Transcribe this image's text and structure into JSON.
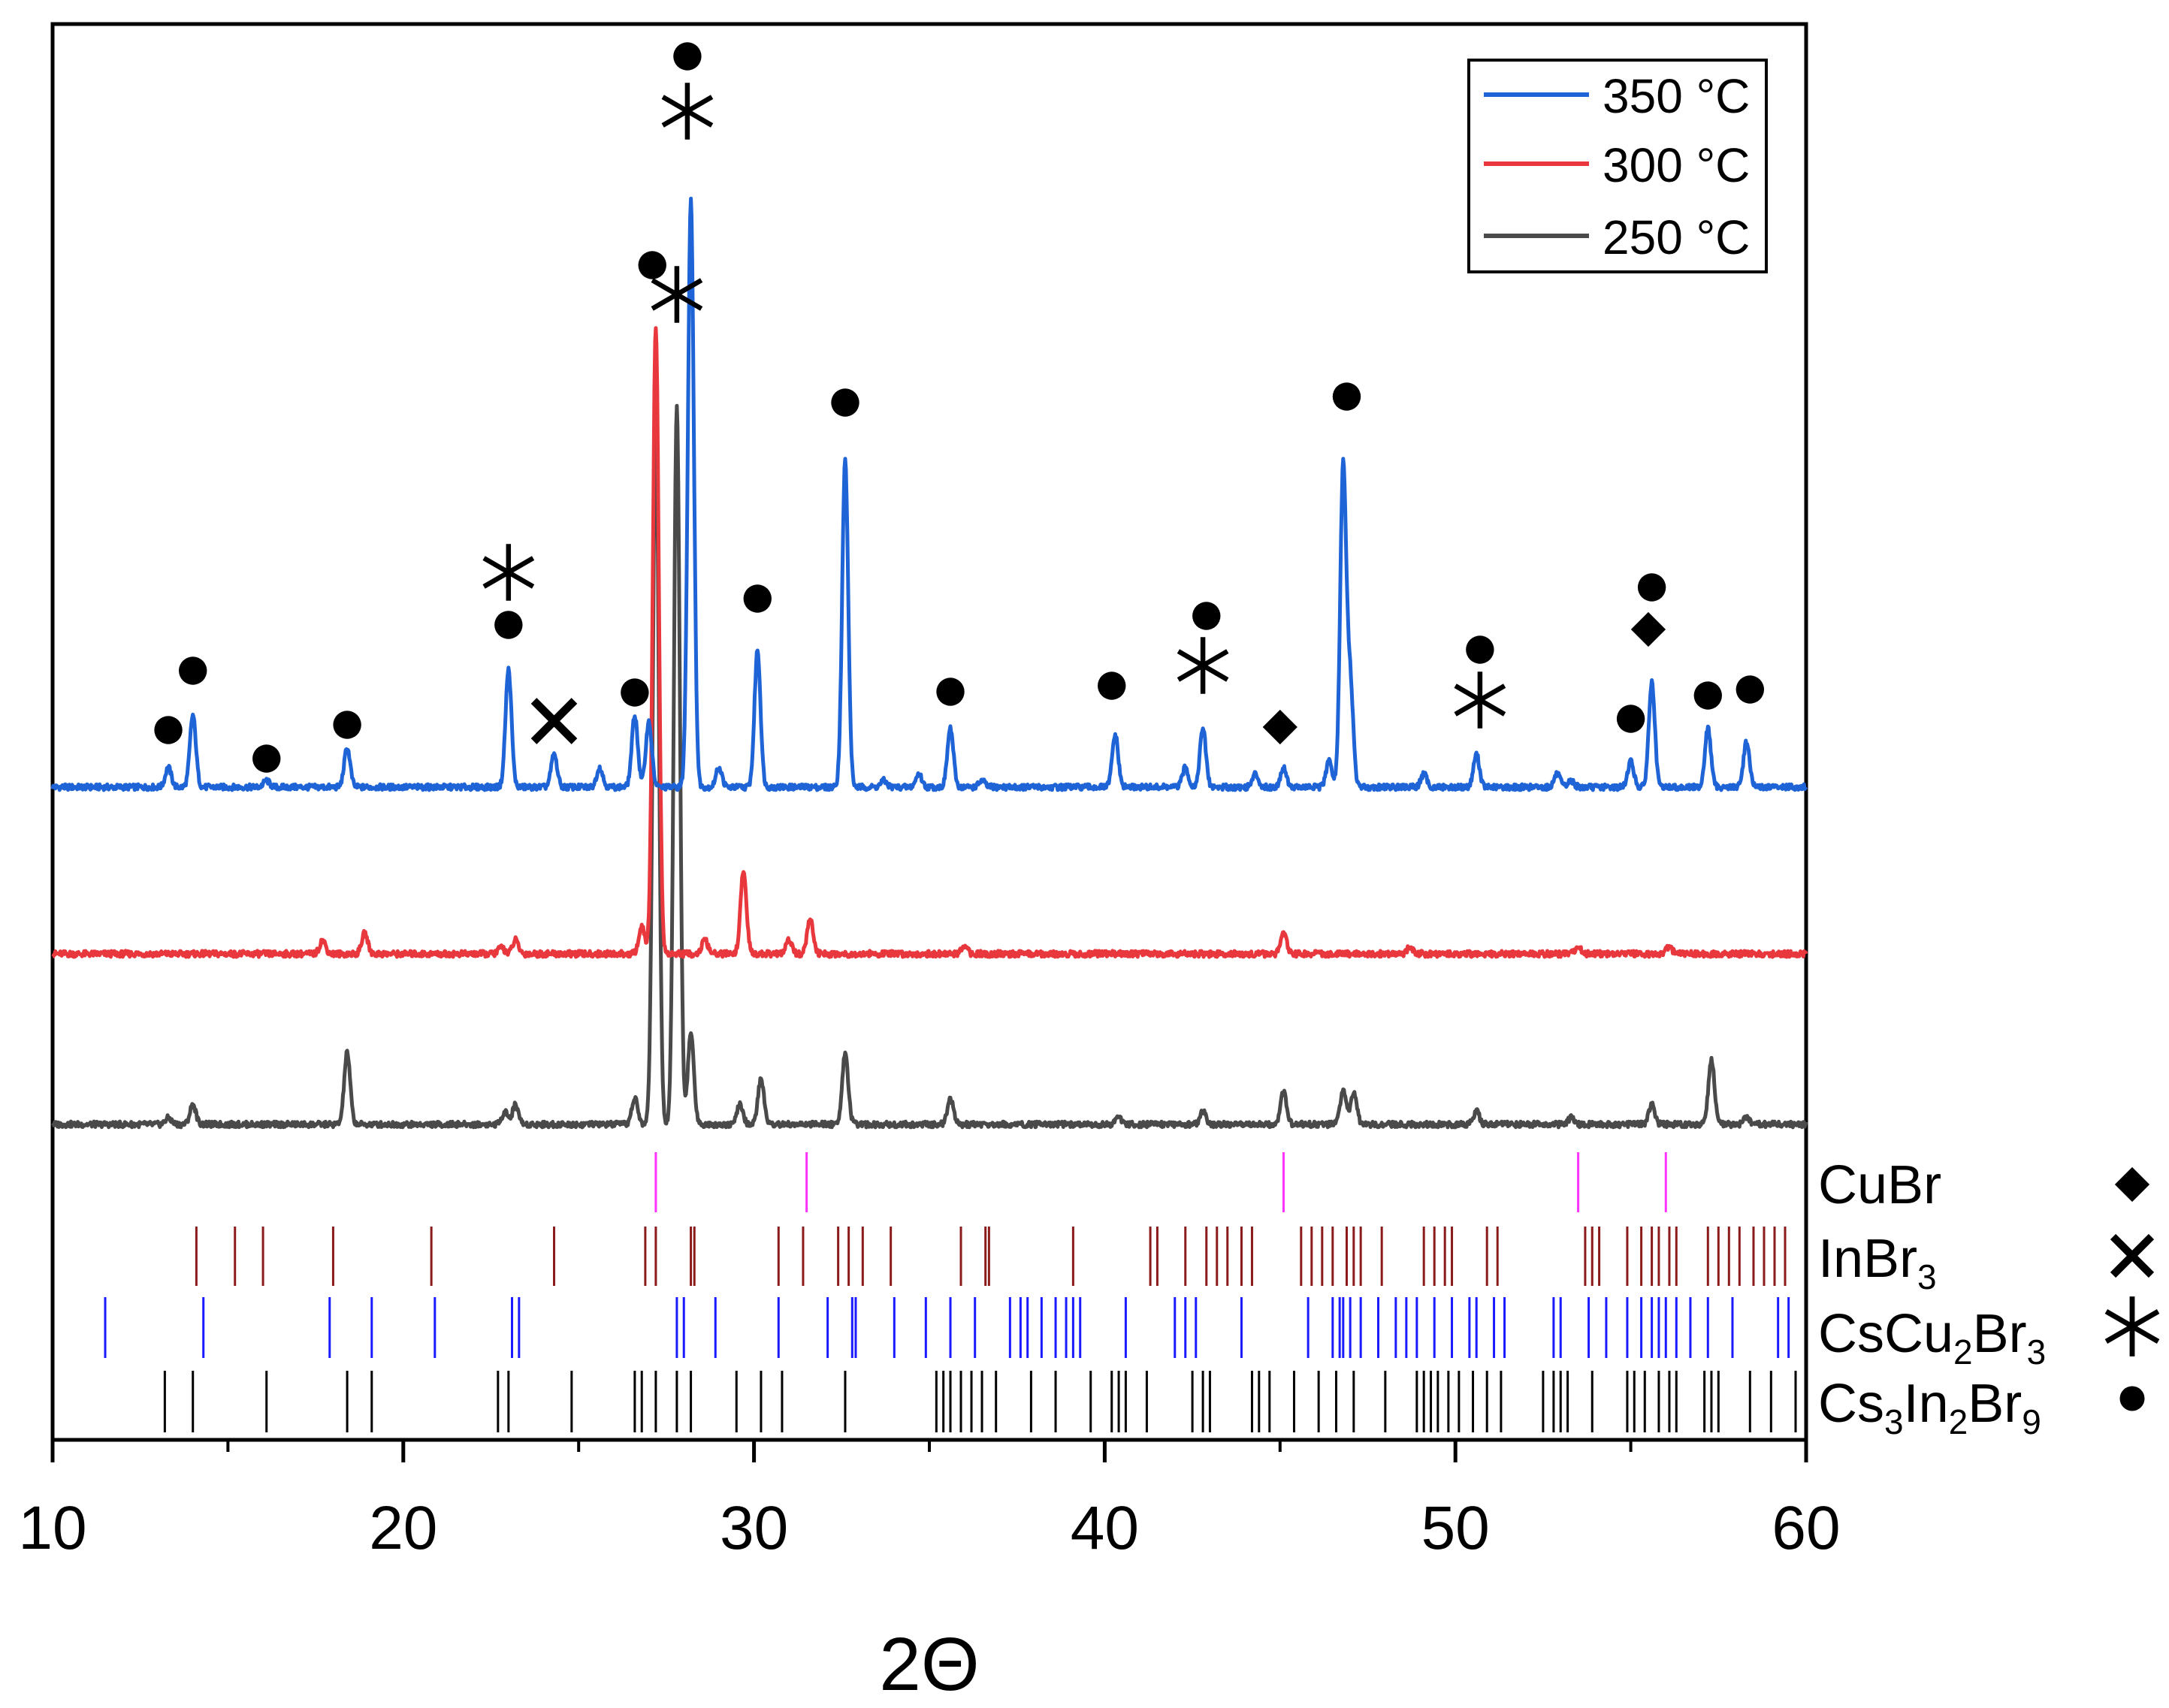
{
  "chart_data": {
    "type": "line",
    "title": "",
    "xlabel": "2Θ",
    "ylabel": "",
    "xlim": [
      10,
      60
    ],
    "xticks": [
      10,
      20,
      30,
      40,
      50,
      60
    ],
    "y_ticks_shown": false,
    "legend": {
      "position": "top-right",
      "entries": [
        {
          "label": "350 °C",
          "color": "#1f64d6"
        },
        {
          "label": "300 °C",
          "color": "#e8383d"
        },
        {
          "label": "250 °C",
          "color": "#4a4a4a"
        }
      ]
    },
    "series": [
      {
        "name": "350 °C",
        "color": "#1f64d6",
        "baseline": 0,
        "peaks": [
          [
            13.3,
            0.03
          ],
          [
            14.0,
            0.11
          ],
          [
            16.1,
            0.01
          ],
          [
            18.4,
            0.06
          ],
          [
            23.0,
            0.18
          ],
          [
            24.3,
            0.05
          ],
          [
            25.6,
            0.03
          ],
          [
            26.6,
            0.11
          ],
          [
            27.0,
            0.1
          ],
          [
            28.2,
            0.9
          ],
          [
            29.0,
            0.03
          ],
          [
            30.1,
            0.21
          ],
          [
            32.6,
            0.5
          ],
          [
            33.7,
            0.01
          ],
          [
            34.7,
            0.02
          ],
          [
            35.6,
            0.09
          ],
          [
            36.5,
            0.01
          ],
          [
            40.3,
            0.08
          ],
          [
            42.3,
            0.03
          ],
          [
            42.8,
            0.09
          ],
          [
            44.3,
            0.02
          ],
          [
            45.1,
            0.03
          ],
          [
            46.4,
            0.04
          ],
          [
            46.8,
            0.49
          ],
          [
            47.0,
            0.16
          ],
          [
            49.1,
            0.02
          ],
          [
            50.6,
            0.05
          ],
          [
            52.9,
            0.02
          ],
          [
            53.3,
            0.01
          ],
          [
            55.0,
            0.04
          ],
          [
            55.6,
            0.16
          ],
          [
            57.2,
            0.09
          ],
          [
            58.3,
            0.07
          ]
        ]
      },
      {
        "name": "300 °C",
        "color": "#e8383d",
        "baseline": 0,
        "peaks": [
          [
            17.7,
            0.02
          ],
          [
            18.9,
            0.03
          ],
          [
            22.8,
            0.01
          ],
          [
            23.2,
            0.02
          ],
          [
            26.8,
            0.04
          ],
          [
            27.2,
            0.92
          ],
          [
            28.6,
            0.02
          ],
          [
            29.7,
            0.12
          ],
          [
            31.0,
            0.02
          ],
          [
            31.6,
            0.05
          ],
          [
            36.0,
            0.01
          ],
          [
            45.1,
            0.03
          ],
          [
            48.7,
            0.01
          ],
          [
            53.5,
            0.01
          ],
          [
            56.1,
            0.01
          ]
        ]
      },
      {
        "name": "250 °C",
        "color": "#4a4a4a",
        "baseline": 0,
        "peaks": [
          [
            13.3,
            0.01
          ],
          [
            14.0,
            0.03
          ],
          [
            18.4,
            0.11
          ],
          [
            22.9,
            0.02
          ],
          [
            23.2,
            0.03
          ],
          [
            26.6,
            0.04
          ],
          [
            27.2,
            1.1
          ],
          [
            27.8,
            1.1
          ],
          [
            28.2,
            0.14
          ],
          [
            29.6,
            0.03
          ],
          [
            30.2,
            0.07
          ],
          [
            32.6,
            0.11
          ],
          [
            35.6,
            0.04
          ],
          [
            40.4,
            0.01
          ],
          [
            42.8,
            0.02
          ],
          [
            45.1,
            0.05
          ],
          [
            46.8,
            0.05
          ],
          [
            47.1,
            0.05
          ],
          [
            50.6,
            0.02
          ],
          [
            53.3,
            0.01
          ],
          [
            55.6,
            0.03
          ],
          [
            57.3,
            0.1
          ],
          [
            58.3,
            0.01
          ]
        ]
      }
    ],
    "annotations": [
      {
        "symbol": "circle",
        "x": 13.3
      },
      {
        "symbol": "circle",
        "x": 14.0
      },
      {
        "symbol": "circle",
        "x": 16.1
      },
      {
        "symbol": "circle",
        "x": 18.4
      },
      {
        "symbol": "circle",
        "x": 23.0
      },
      {
        "symbol": "asterisk",
        "x": 23.0
      },
      {
        "symbol": "cross",
        "x": 24.3
      },
      {
        "symbol": "circle",
        "x": 26.6
      },
      {
        "symbol": "circle",
        "x": 27.1
      },
      {
        "symbol": "asterisk",
        "x": 27.8
      },
      {
        "symbol": "circle",
        "x": 28.1
      },
      {
        "symbol": "asterisk",
        "x": 28.1
      },
      {
        "symbol": "circle",
        "x": 30.1
      },
      {
        "symbol": "circle",
        "x": 32.6
      },
      {
        "symbol": "circle",
        "x": 35.6
      },
      {
        "symbol": "circle",
        "x": 40.2
      },
      {
        "symbol": "asterisk",
        "x": 42.8
      },
      {
        "symbol": "circle",
        "x": 42.9
      },
      {
        "symbol": "diamond",
        "x": 45.0
      },
      {
        "symbol": "circle",
        "x": 46.9
      },
      {
        "symbol": "asterisk",
        "x": 50.7
      },
      {
        "symbol": "circle",
        "x": 50.7
      },
      {
        "symbol": "circle",
        "x": 55.0
      },
      {
        "symbol": "diamond",
        "x": 55.5
      },
      {
        "symbol": "circle",
        "x": 55.6
      },
      {
        "symbol": "circle",
        "x": 57.2
      },
      {
        "symbol": "circle",
        "x": 58.4
      }
    ],
    "reference_phases": [
      {
        "name": "CuBr",
        "base": "CuBr",
        "sub": [],
        "symbol": "diamond",
        "color": "#ff33ff",
        "positions": [
          27.2,
          31.5,
          45.1,
          53.5,
          56.0
        ]
      },
      {
        "name": "InBr3",
        "base": "InBr",
        "sub": [
          "3"
        ],
        "symbol": "cross",
        "color": "#8b1a1a",
        "positions": [
          14.1,
          15.2,
          16.0,
          18.0,
          20.8,
          24.3,
          26.9,
          27.2,
          28.2,
          28.3,
          30.7,
          31.4,
          32.4,
          32.7,
          33.1,
          33.9,
          35.9,
          36.6,
          36.7,
          39.1,
          41.3,
          41.5,
          42.3,
          42.9,
          43.2,
          43.5,
          43.9,
          44.2,
          45.6,
          45.9,
          46.2,
          46.5,
          46.9,
          47.1,
          47.3,
          47.9,
          49.1,
          49.4,
          49.7,
          49.9,
          50.9,
          51.2,
          53.7,
          53.9,
          54.1,
          54.9,
          55.3,
          55.6,
          55.8,
          56.1,
          56.3,
          57.2,
          57.5,
          57.8,
          58.1,
          58.5,
          58.8,
          59.1,
          59.4
        ]
      },
      {
        "name": "CsCu2Br3",
        "base": "CsCu",
        "sub": [
          "2",
          "Br",
          "3"
        ],
        "symbol": "asterisk",
        "color": "#1a1aff",
        "positions": [
          11.5,
          14.3,
          17.9,
          19.1,
          20.9,
          23.1,
          23.3,
          27.8,
          28.0,
          28.9,
          30.7,
          32.1,
          32.8,
          32.9,
          34.0,
          34.9,
          35.6,
          36.3,
          37.3,
          37.6,
          37.8,
          38.2,
          38.6,
          38.9,
          39.1,
          39.3,
          40.6,
          42.0,
          42.3,
          42.6,
          43.9,
          45.8,
          46.5,
          46.7,
          46.8,
          47.0,
          47.3,
          47.8,
          48.3,
          48.6,
          48.9,
          49.4,
          49.9,
          50.4,
          50.6,
          51.1,
          51.4,
          52.8,
          53.0,
          53.8,
          54.3,
          54.9,
          55.3,
          55.6,
          55.8,
          56.0,
          56.3,
          56.7,
          57.2,
          57.9,
          59.2,
          59.5
        ]
      },
      {
        "name": "Cs3In2Br9",
        "base": "Cs",
        "sub": [
          "3",
          "In",
          "2",
          "Br",
          "9"
        ],
        "symbol": "circle",
        "color": "#000000",
        "positions": [
          13.2,
          14.0,
          16.1,
          18.4,
          19.1,
          22.7,
          23.0,
          24.8,
          26.6,
          26.8,
          27.2,
          27.8,
          28.2,
          29.5,
          30.2,
          30.8,
          32.6,
          35.2,
          35.4,
          35.6,
          35.9,
          36.2,
          36.5,
          36.9,
          37.9,
          38.6,
          39.6,
          40.2,
          40.4,
          40.6,
          41.2,
          42.5,
          42.8,
          43.0,
          44.2,
          44.4,
          44.7,
          45.4,
          46.1,
          46.6,
          47.1,
          48.0,
          48.9,
          49.1,
          49.3,
          49.5,
          49.8,
          50.1,
          50.5,
          50.9,
          51.3,
          52.5,
          52.8,
          53.0,
          53.2,
          53.9,
          54.9,
          55.1,
          55.4,
          55.8,
          56.1,
          56.3,
          57.1,
          57.3,
          57.5,
          58.4,
          59.0,
          59.7
        ]
      }
    ]
  }
}
